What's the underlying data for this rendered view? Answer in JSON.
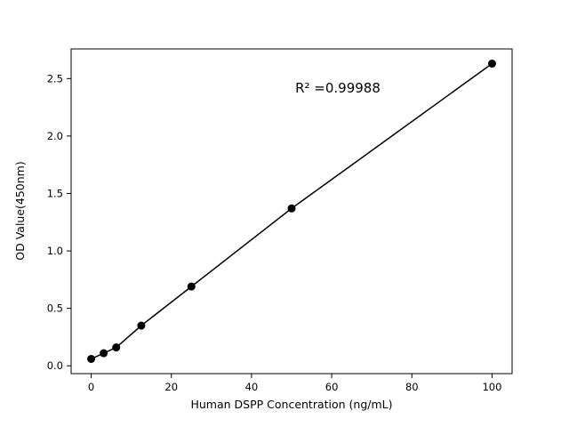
{
  "chart_data": {
    "type": "scatter",
    "title": "",
    "xlabel": "Human DSPP Concentration (ng/mL)",
    "ylabel": "OD Value(450nm)",
    "annotation": "R² =0.99988",
    "x": [
      0,
      3.125,
      6.25,
      12.5,
      25,
      50,
      100
    ],
    "y": [
      0.06,
      0.11,
      0.16,
      0.35,
      0.69,
      1.37,
      2.63
    ],
    "xlim": [
      -5,
      105
    ],
    "ylim": [
      -0.068,
      2.758
    ],
    "xticks": [
      0,
      20,
      40,
      60,
      80,
      100
    ],
    "xtick_labels": [
      "0",
      "20",
      "40",
      "60",
      "80",
      "100"
    ],
    "yticks": [
      0.0,
      0.5,
      1.0,
      1.5,
      2.0,
      2.5
    ],
    "ytick_labels": [
      "0.0",
      "0.5",
      "1.0",
      "1.5",
      "2.0",
      "2.5"
    ],
    "grid": false,
    "legend": "none",
    "marker_color": "#000000",
    "line_color": "#000000",
    "background": "#ffffff"
  }
}
